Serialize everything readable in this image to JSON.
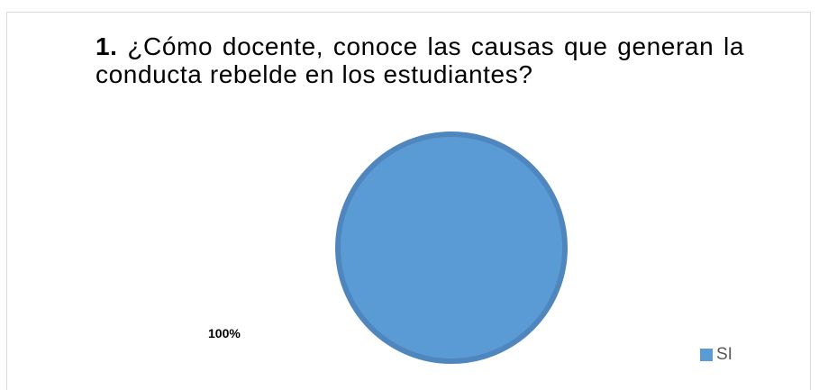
{
  "question": {
    "number": "1.",
    "text": "¿Cómo docente, conoce las causas que generan la conducta rebelde en los estudiantes?"
  },
  "colors": {
    "slice_fill": "#5b9bd5",
    "slice_edge": "#4f86bd"
  },
  "chart_data": {
    "type": "pie",
    "title": "¿Cómo docente, conoce las causas que generan la conducta rebelde en los estudiantes?",
    "categories": [
      "SI"
    ],
    "values": [
      100
    ],
    "data_labels": [
      "100%"
    ],
    "legend": {
      "entries": [
        "SI"
      ],
      "position": "bottom-right"
    }
  }
}
